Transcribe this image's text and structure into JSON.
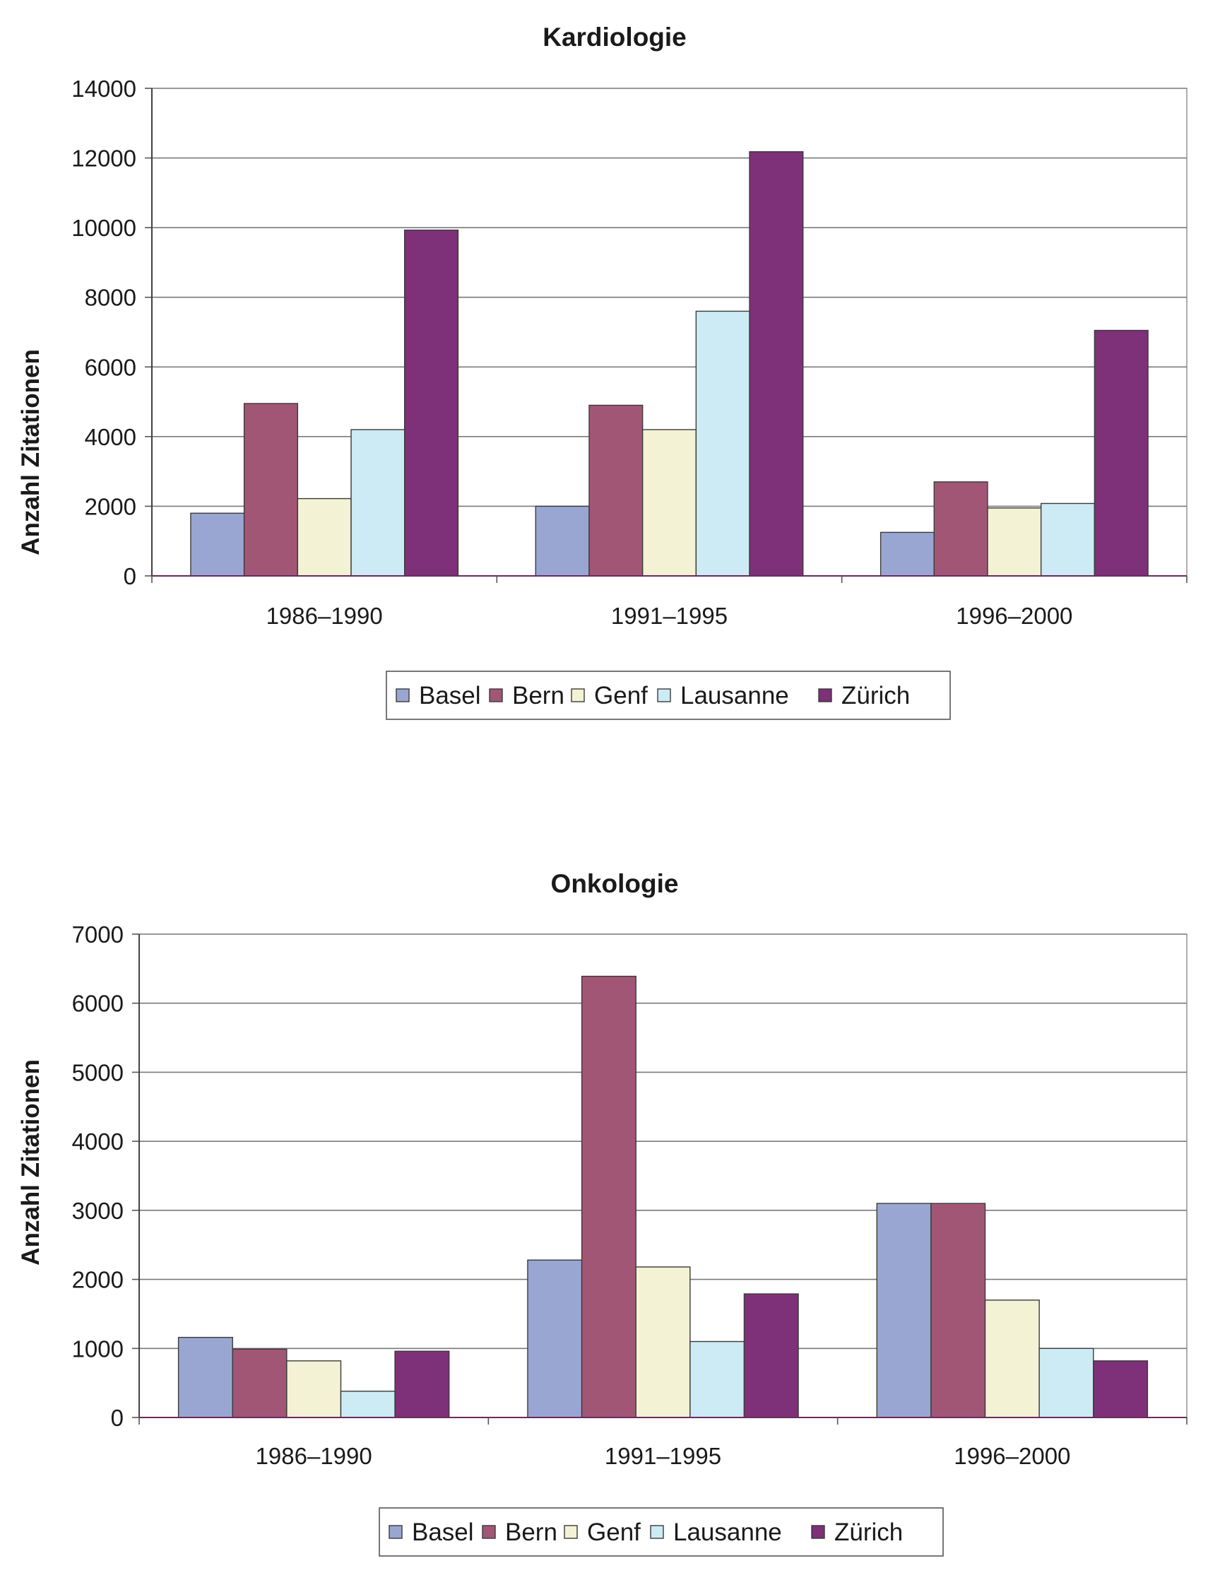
{
  "chart_data": [
    {
      "type": "bar",
      "title": "Kardiologie",
      "xlabel": "",
      "ylabel": "Anzahl Zitationen",
      "ylim": [
        0,
        14000
      ],
      "yticks": [
        0,
        2000,
        4000,
        6000,
        8000,
        10000,
        12000,
        14000
      ],
      "grid": true,
      "categories": [
        "1986–1990",
        "1991–1995",
        "1996–2000"
      ],
      "series": [
        {
          "name": "Basel",
          "color": "#9aa6d2",
          "values": [
            1800,
            2000,
            1250
          ]
        },
        {
          "name": "Bern",
          "color": "#a25675",
          "values": [
            4950,
            4900,
            2700
          ]
        },
        {
          "name": "Genf",
          "color": "#f4f2d4",
          "values": [
            2220,
            4200,
            1950
          ]
        },
        {
          "name": "Lausanne",
          "color": "#ccebf5",
          "values": [
            4200,
            7600,
            2080
          ]
        },
        {
          "name": "Zürich",
          "color": "#7e3078",
          "values": [
            9930,
            12180,
            7050
          ]
        }
      ],
      "legend": "bottom"
    },
    {
      "type": "bar",
      "title": "Onkologie",
      "xlabel": "",
      "ylabel": "Anzahl Zitationen",
      "ylim": [
        0,
        7000
      ],
      "yticks": [
        0,
        1000,
        2000,
        3000,
        4000,
        5000,
        6000,
        7000
      ],
      "grid": true,
      "categories": [
        "1986–1990",
        "1991–1995",
        "1996–2000"
      ],
      "series": [
        {
          "name": "Basel",
          "color": "#9aa6d2",
          "values": [
            1160,
            2280,
            3100
          ]
        },
        {
          "name": "Bern",
          "color": "#a25675",
          "values": [
            990,
            6390,
            3100
          ]
        },
        {
          "name": "Genf",
          "color": "#f4f2d4",
          "values": [
            820,
            2180,
            1700
          ]
        },
        {
          "name": "Lausanne",
          "color": "#ccebf5",
          "values": [
            380,
            1100,
            1000
          ]
        },
        {
          "name": "Zürich",
          "color": "#7e3078",
          "values": [
            960,
            1790,
            820
          ]
        }
      ],
      "legend": "bottom"
    }
  ]
}
